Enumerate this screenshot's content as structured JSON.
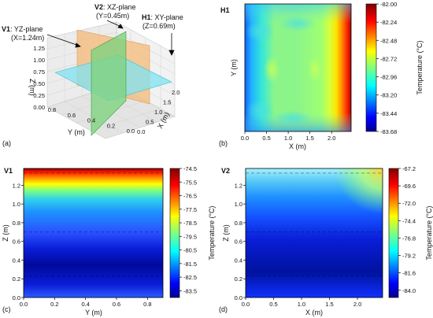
{
  "figure": {
    "panel_tags": [
      "(a)",
      "(b)",
      "(c)",
      "(d)"
    ],
    "colors": {
      "plane_yz": "#f5b97a",
      "plane_xz": "#7fd27f",
      "plane_xy": "#7fe3f0",
      "wall": "#b0b0b0"
    }
  },
  "chart_data": [
    {
      "type": "diagram",
      "panel": "(a)",
      "annotations": [
        {
          "tag": "V2",
          "lines": [
            ": XZ-plane",
            "(Y=0.45m)"
          ]
        },
        {
          "tag": "V1",
          "lines": [
            ": YZ-plane",
            "(X=1.24m)"
          ]
        },
        {
          "tag": "H1",
          "lines": [
            ": XY-plane",
            "(Z=0.69m)"
          ]
        }
      ],
      "zlabel": "Z (m)",
      "xlabel": "X (m)",
      "ylabel": "Y (m)",
      "z_ticks": [
        "0.00",
        "0.25",
        "0.50",
        "0.75",
        "1.00",
        "1.25"
      ],
      "y_ticks": [
        "0.8",
        "0.6",
        "0.4",
        "0.2",
        "0.0"
      ],
      "x_ticks": [
        "0.0",
        "0.5",
        "1.0",
        "1.5",
        "2.0"
      ]
    },
    {
      "type": "heatmap",
      "panel": "(b)",
      "title": "H1",
      "xlabel": "X (m)",
      "ylabel": "Y (m)",
      "xlim": [
        0,
        2.45
      ],
      "ylim": [
        0,
        0.9
      ],
      "x_ticks": [
        "0.0",
        "0.5",
        "1.0",
        "1.5",
        "2.0"
      ],
      "y_ticks": [],
      "colorbar": {
        "label": "Temperature (°C)",
        "range": [
          -83.68,
          -82.0
        ],
        "ticks": [
          "-82.00",
          "-82.24",
          "-82.48",
          "-82.72",
          "-82.96",
          "-83.20",
          "-83.44",
          "-83.68"
        ]
      },
      "dashed_lines": []
    },
    {
      "type": "heatmap",
      "panel": "(c)",
      "title": "V1",
      "xlabel": "Y (m)",
      "ylabel": "Z (m)",
      "xlim": [
        0,
        0.9
      ],
      "ylim": [
        0,
        1.38
      ],
      "x_ticks": [
        "0.0",
        "0.2",
        "0.4",
        "0.6",
        "0.8"
      ],
      "y_ticks": [
        "0.0",
        "0.2",
        "0.4",
        "0.6",
        "0.8",
        "1.0",
        "1.2"
      ],
      "colorbar": {
        "label": "Temperature (°C)",
        "range": [
          -84.0,
          -74.5
        ],
        "ticks": [
          "-74.5",
          "-75.5",
          "-76.5",
          "-77.5",
          "-78.5",
          "-79.5",
          "-80.5",
          "-81.5",
          "-82.5",
          "-83.5"
        ]
      },
      "dashed_lines": [
        1.33,
        0.7,
        0.23
      ]
    },
    {
      "type": "heatmap",
      "panel": "(d)",
      "title": "V2",
      "xlabel": "X (m)",
      "ylabel": "Z (m)",
      "xlim": [
        0,
        2.45
      ],
      "ylim": [
        0,
        1.38
      ],
      "x_ticks": [
        "0.0",
        "0.5",
        "1.0",
        "1.5",
        "2.0"
      ],
      "y_ticks": [
        "0.0",
        "0.2",
        "0.4",
        "0.6",
        "0.8",
        "1.0",
        "1.2"
      ],
      "colorbar": {
        "label": "Temperature (°C)",
        "range": [
          -85.0,
          -67.2
        ],
        "ticks": [
          "-67.2",
          "-69.6",
          "-72.0",
          "-74.4",
          "-76.8",
          "-79.2",
          "-81.6",
          "-84.0"
        ]
      },
      "dashed_lines": [
        1.33,
        0.7,
        0.23
      ]
    }
  ]
}
